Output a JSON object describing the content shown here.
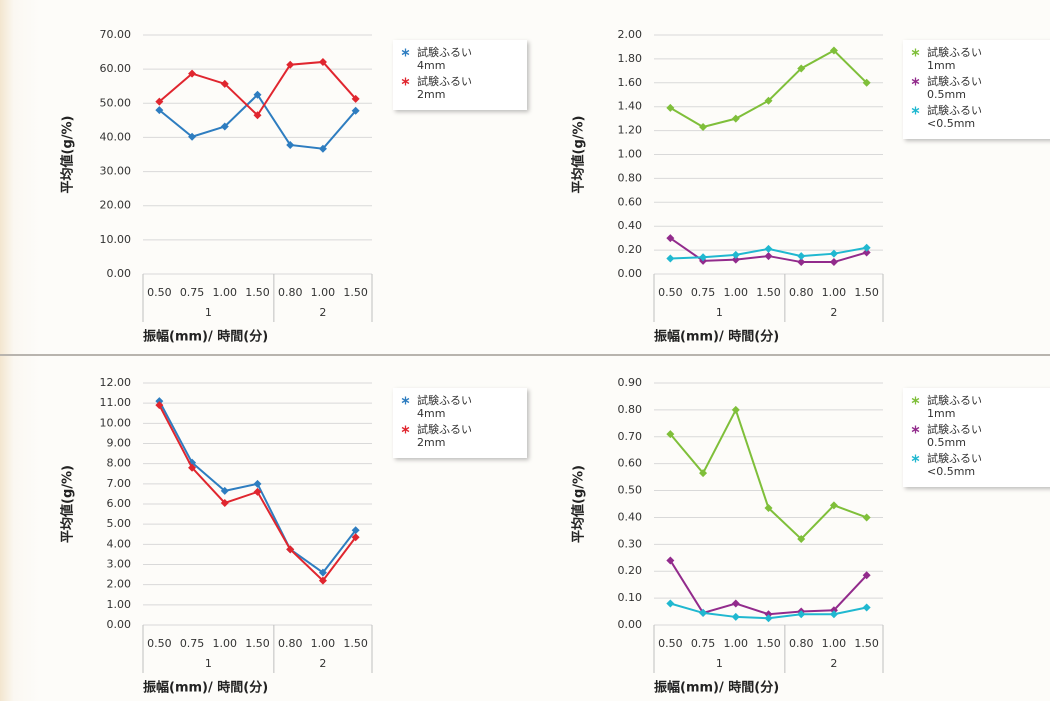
{
  "chart_data": [
    {
      "type": "line",
      "y_label": "平均値(g/%)",
      "x_label": "振幅(mm)/ 時間(分)",
      "grid": true,
      "legend": "right",
      "category_groups": [
        {
          "label": "1",
          "categories": [
            "0.50",
            "0.75",
            "1.00",
            "1.50"
          ]
        },
        {
          "label": "2",
          "categories": [
            "0.80",
            "1.00",
            "1.50"
          ]
        }
      ],
      "ylim": [
        0,
        70
      ],
      "yticks": [
        {
          "value": 0,
          "label": "0.00"
        },
        {
          "value": 10,
          "label": "10.00"
        },
        {
          "value": 20,
          "label": "20.00"
        },
        {
          "value": 30,
          "label": "30.00"
        },
        {
          "value": 40,
          "label": "40.00"
        },
        {
          "value": 50,
          "label": "50.00"
        },
        {
          "value": 60,
          "label": "60.00"
        },
        {
          "value": 70,
          "label": "70.00"
        }
      ],
      "series": [
        {
          "name": "試験ふるい\n4mm",
          "color": "#2e7dc0",
          "values": [
            48.0,
            40.2,
            43.2,
            52.5,
            37.8,
            36.7,
            47.8
          ]
        },
        {
          "name": "試験ふるい\n2mm",
          "color": "#e0262f",
          "values": [
            50.5,
            58.7,
            55.7,
            46.5,
            61.3,
            62.1,
            51.3
          ]
        }
      ]
    },
    {
      "type": "line",
      "y_label": "平均値(g/%)",
      "x_label": "振幅(mm)/ 時間(分)",
      "grid": true,
      "legend": "right",
      "category_groups": [
        {
          "label": "1",
          "categories": [
            "0.50",
            "0.75",
            "1.00",
            "1.50"
          ]
        },
        {
          "label": "2",
          "categories": [
            "0.80",
            "1.00",
            "1.50"
          ]
        }
      ],
      "ylim": [
        0,
        2
      ],
      "yticks": [
        {
          "value": 0,
          "label": "0.00"
        },
        {
          "value": 0.2,
          "label": "0.20"
        },
        {
          "value": 0.4,
          "label": "0.40"
        },
        {
          "value": 0.6,
          "label": "0.60"
        },
        {
          "value": 0.8,
          "label": "0.80"
        },
        {
          "value": 1,
          "label": "1.00"
        },
        {
          "value": 1.2,
          "label": "1.20"
        },
        {
          "value": 1.4,
          "label": "1.40"
        },
        {
          "value": 1.6,
          "label": "1.60"
        },
        {
          "value": 1.8,
          "label": "1.80"
        },
        {
          "value": 2,
          "label": "2.00"
        }
      ],
      "series": [
        {
          "name": "試験ふるい\n1mm",
          "color": "#7fbf3a",
          "values": [
            1.39,
            1.23,
            1.3,
            1.45,
            1.72,
            1.87,
            1.6
          ]
        },
        {
          "name": "試験ふるい\n0.5mm",
          "color": "#922b8c",
          "values": [
            0.3,
            0.11,
            0.12,
            0.15,
            0.1,
            0.1,
            0.18
          ]
        },
        {
          "name": "試験ふるい\n<0.5mm",
          "color": "#20b8d0",
          "values": [
            0.13,
            0.14,
            0.16,
            0.21,
            0.15,
            0.17,
            0.22
          ]
        }
      ]
    },
    {
      "type": "line",
      "y_label": "平均値(g/%)",
      "x_label": "振幅(mm)/ 時間(分)",
      "grid": true,
      "legend": "right",
      "category_groups": [
        {
          "label": "1",
          "categories": [
            "0.50",
            "0.75",
            "1.00",
            "1.50"
          ]
        },
        {
          "label": "2",
          "categories": [
            "0.80",
            "1.00",
            "1.50"
          ]
        }
      ],
      "ylim": [
        0,
        12
      ],
      "yticks": [
        {
          "value": 0,
          "label": "0.00"
        },
        {
          "value": 1,
          "label": "1.00"
        },
        {
          "value": 2,
          "label": "2.00"
        },
        {
          "value": 3,
          "label": "3.00"
        },
        {
          "value": 4,
          "label": "4.00"
        },
        {
          "value": 5,
          "label": "5.00"
        },
        {
          "value": 6,
          "label": "6.00"
        },
        {
          "value": 7,
          "label": "7.00"
        },
        {
          "value": 8,
          "label": "8.00"
        },
        {
          "value": 9,
          "label": "9.00"
        },
        {
          "value": 10,
          "label": "10.00"
        },
        {
          "value": 11,
          "label": "11.00"
        },
        {
          "value": 12,
          "label": "12.00"
        }
      ],
      "series": [
        {
          "name": "試験ふるい\n4mm",
          "color": "#2e7dc0",
          "values": [
            11.1,
            8.05,
            6.65,
            7.0,
            3.75,
            2.6,
            4.7
          ]
        },
        {
          "name": "試験ふるい\n2mm",
          "color": "#e0262f",
          "values": [
            10.9,
            7.8,
            6.05,
            6.6,
            3.75,
            2.2,
            4.35
          ]
        }
      ]
    },
    {
      "type": "line",
      "y_label": "平均値(g/%)",
      "x_label": "振幅(mm)/ 時間(分)",
      "grid": true,
      "legend": "right",
      "category_groups": [
        {
          "label": "1",
          "categories": [
            "0.50",
            "0.75",
            "1.00",
            "1.50"
          ]
        },
        {
          "label": "2",
          "categories": [
            "0.80",
            "1.00",
            "1.50"
          ]
        }
      ],
      "ylim": [
        0,
        0.9
      ],
      "yticks": [
        {
          "value": 0,
          "label": "0.00"
        },
        {
          "value": 0.1,
          "label": "0.10"
        },
        {
          "value": 0.2,
          "label": "0.20"
        },
        {
          "value": 0.3,
          "label": "0.30"
        },
        {
          "value": 0.4,
          "label": "0.40"
        },
        {
          "value": 0.5,
          "label": "0.50"
        },
        {
          "value": 0.6,
          "label": "0.60"
        },
        {
          "value": 0.7,
          "label": "0.70"
        },
        {
          "value": 0.8,
          "label": "0.80"
        },
        {
          "value": 0.9,
          "label": "0.90"
        }
      ],
      "series": [
        {
          "name": "試験ふるい\n1mm",
          "color": "#7fbf3a",
          "values": [
            0.71,
            0.565,
            0.8,
            0.435,
            0.32,
            0.445,
            0.4
          ]
        },
        {
          "name": "試験ふるい\n0.5mm",
          "color": "#922b8c",
          "values": [
            0.24,
            0.045,
            0.08,
            0.04,
            0.05,
            0.055,
            0.185
          ]
        },
        {
          "name": "試験ふるい\n<0.5mm",
          "color": "#20b8d0",
          "values": [
            0.08,
            0.045,
            0.03,
            0.025,
            0.04,
            0.04,
            0.065
          ]
        }
      ]
    }
  ]
}
